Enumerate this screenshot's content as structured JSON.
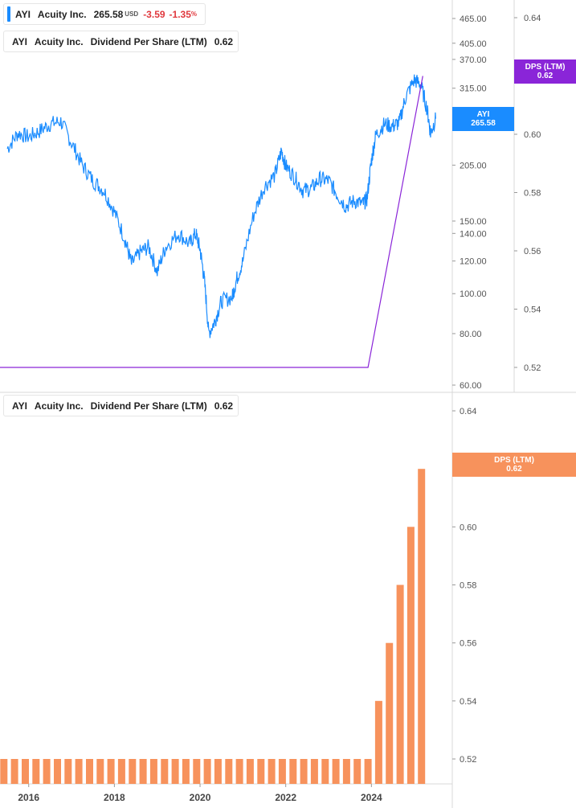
{
  "colors": {
    "price": "#1a8cff",
    "dps_line": "#8a25d8",
    "dps_bar": "#f7925c",
    "dps_tag_top": "#8a25d8",
    "dps_tag_bottom": "#f7925c",
    "negative": "#e0393e"
  },
  "top_legend_price": {
    "ticker": "AYI",
    "company": "Acuity Inc.",
    "price": "265.58",
    "currency": "USD",
    "change": "-3.59",
    "change_pct_value": "-1.35",
    "pct_sign": "%"
  },
  "top_legend_dps": {
    "ticker": "AYI",
    "company": "Acuity Inc.",
    "metric": "Dividend Per Share (LTM)",
    "value": "0.62"
  },
  "bottom_legend": {
    "ticker": "AYI",
    "company": "Acuity Inc.",
    "metric": "Dividend Per Share (LTM)",
    "value": "0.62"
  },
  "tags": {
    "price_name": "AYI",
    "price_value": "265.58",
    "dps_top_name": "DPS (LTM)",
    "dps_top_value": "0.62",
    "dps_bottom_name": "DPS (LTM)",
    "dps_bottom_value": "0.62"
  },
  "chart_data": [
    {
      "type": "line",
      "scale": "log",
      "y_axis_left_ticks": [
        60,
        80,
        100,
        120,
        140,
        150,
        205,
        315,
        370,
        405,
        465
      ],
      "y_axis_left_tick_labels": [
        "60.00",
        "80.00",
        "100.00",
        "120.00",
        "140.00",
        "150.00",
        "205.00",
        "315.00",
        "370.00",
        "405.00",
        "465.00"
      ],
      "y_axis_right_ticks": [
        0.52,
        0.54,
        0.56,
        0.58,
        0.6,
        0.62,
        0.64
      ],
      "y_axis_right_tick_labels": [
        "0.52",
        "0.54",
        "0.56",
        "0.58",
        "0.60",
        "0.62",
        "0.64"
      ],
      "series": [
        {
          "name": "AYI",
          "axis": "left",
          "points": [
            [
              2015.5,
              225
            ],
            [
              2015.75,
              245
            ],
            [
              2016.0,
              240
            ],
            [
              2016.25,
              248
            ],
            [
              2016.5,
              258
            ],
            [
              2016.75,
              262
            ],
            [
              2017.0,
              232
            ],
            [
              2017.25,
              205
            ],
            [
              2017.5,
              188
            ],
            [
              2017.75,
              178
            ],
            [
              2018.0,
              158
            ],
            [
              2018.25,
              135
            ],
            [
              2018.4,
              118
            ],
            [
              2018.6,
              126
            ],
            [
              2018.8,
              130
            ],
            [
              2019.0,
              113
            ],
            [
              2019.2,
              130
            ],
            [
              2019.5,
              140
            ],
            [
              2019.75,
              132
            ],
            [
              2019.9,
              140
            ],
            [
              2020.0,
              128
            ],
            [
              2020.1,
              108
            ],
            [
              2020.2,
              80
            ],
            [
              2020.35,
              86
            ],
            [
              2020.5,
              96
            ],
            [
              2020.75,
              98
            ],
            [
              2020.85,
              108
            ],
            [
              2021.0,
              120
            ],
            [
              2021.25,
              155
            ],
            [
              2021.5,
              182
            ],
            [
              2021.75,
              194
            ],
            [
              2021.9,
              222
            ],
            [
              2022.0,
              204
            ],
            [
              2022.2,
              192
            ],
            [
              2022.4,
              178
            ],
            [
              2022.6,
              180
            ],
            [
              2022.8,
              190
            ],
            [
              2023.0,
              188
            ],
            [
              2023.2,
              174
            ],
            [
              2023.4,
              163
            ],
            [
              2023.6,
              168
            ],
            [
              2023.8,
              165
            ],
            [
              2023.9,
              170
            ],
            [
              2024.0,
              210
            ],
            [
              2024.1,
              242
            ],
            [
              2024.3,
              258
            ],
            [
              2024.5,
              255
            ],
            [
              2024.65,
              260
            ],
            [
              2024.8,
              300
            ],
            [
              2025.0,
              330
            ],
            [
              2025.15,
              322
            ],
            [
              2025.3,
              280
            ],
            [
              2025.38,
              245
            ],
            [
              2025.5,
              265.58
            ]
          ]
        },
        {
          "name": "Dividend Per Share (LTM)",
          "axis": "right",
          "points": [
            [
              2015.3,
              0.52
            ],
            [
              2023.92,
              0.52
            ],
            [
              2025.2,
              0.62
            ]
          ]
        }
      ]
    },
    {
      "type": "bar",
      "y_ticks": [
        0.52,
        0.54,
        0.56,
        0.58,
        0.6,
        0.62,
        0.64
      ],
      "y_tick_labels": [
        "0.52",
        "0.54",
        "0.56",
        "0.58",
        "0.60",
        "0.62",
        "0.64"
      ],
      "x_tick_labels": [
        "2016",
        "2018",
        "2020",
        "2022",
        "2024"
      ],
      "x_ticks": [
        2016,
        2018,
        2020,
        2022,
        2024
      ],
      "series": [
        {
          "name": "Dividend Per Share (LTM)",
          "x": [
            2015.42,
            2015.67,
            2015.92,
            2016.17,
            2016.42,
            2016.67,
            2016.92,
            2017.17,
            2017.42,
            2017.67,
            2017.92,
            2018.17,
            2018.42,
            2018.67,
            2018.92,
            2019.17,
            2019.42,
            2019.67,
            2019.92,
            2020.17,
            2020.42,
            2020.67,
            2020.92,
            2021.17,
            2021.42,
            2021.67,
            2021.92,
            2022.17,
            2022.42,
            2022.67,
            2022.92,
            2023.17,
            2023.42,
            2023.67,
            2023.92,
            2024.17,
            2024.42,
            2024.67,
            2024.92,
            2025.17
          ],
          "values": [
            0.52,
            0.52,
            0.52,
            0.52,
            0.52,
            0.52,
            0.52,
            0.52,
            0.52,
            0.52,
            0.52,
            0.52,
            0.52,
            0.52,
            0.52,
            0.52,
            0.52,
            0.52,
            0.52,
            0.52,
            0.52,
            0.52,
            0.52,
            0.52,
            0.52,
            0.52,
            0.52,
            0.52,
            0.52,
            0.52,
            0.52,
            0.52,
            0.52,
            0.52,
            0.52,
            0.54,
            0.56,
            0.58,
            0.6,
            0.62
          ]
        }
      ]
    }
  ]
}
